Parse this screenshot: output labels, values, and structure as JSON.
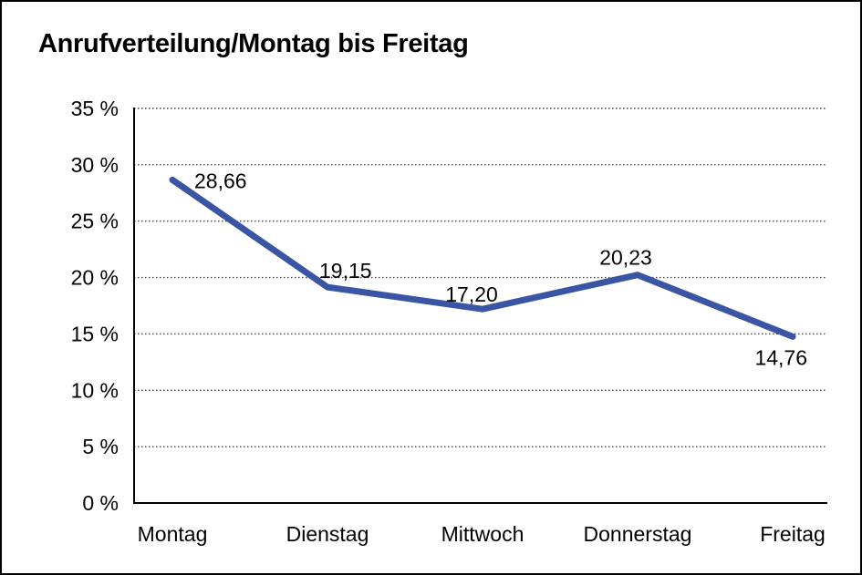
{
  "page": {
    "title": "Anrufverteilung/Montag bis Freitag"
  },
  "chart_data": {
    "type": "line",
    "title": "Anrufverteilung/Montag bis Freitag",
    "categories": [
      "Montag",
      "Dienstag",
      "Mittwoch",
      "Donnerstag",
      "Freitag"
    ],
    "values": [
      28.66,
      19.15,
      17.2,
      20.23,
      14.76
    ],
    "value_labels": [
      "28,66",
      "19,15",
      "17,20",
      "20,23",
      "14,76"
    ],
    "unit": "%",
    "y_tick_values": [
      0,
      5,
      10,
      15,
      20,
      25,
      30,
      35
    ],
    "y_tick_labels": [
      "0 %",
      "5 %",
      "10 %",
      "15 %",
      "20 %",
      "25 %",
      "30 %",
      "35 %"
    ],
    "ylim": [
      0,
      35
    ],
    "grid": "horizontal-dotted",
    "legend": "none",
    "line_color": "#3A55A3",
    "axis_color": "#000000",
    "text_color": "#000000",
    "background_color": "#FFFFFF"
  }
}
